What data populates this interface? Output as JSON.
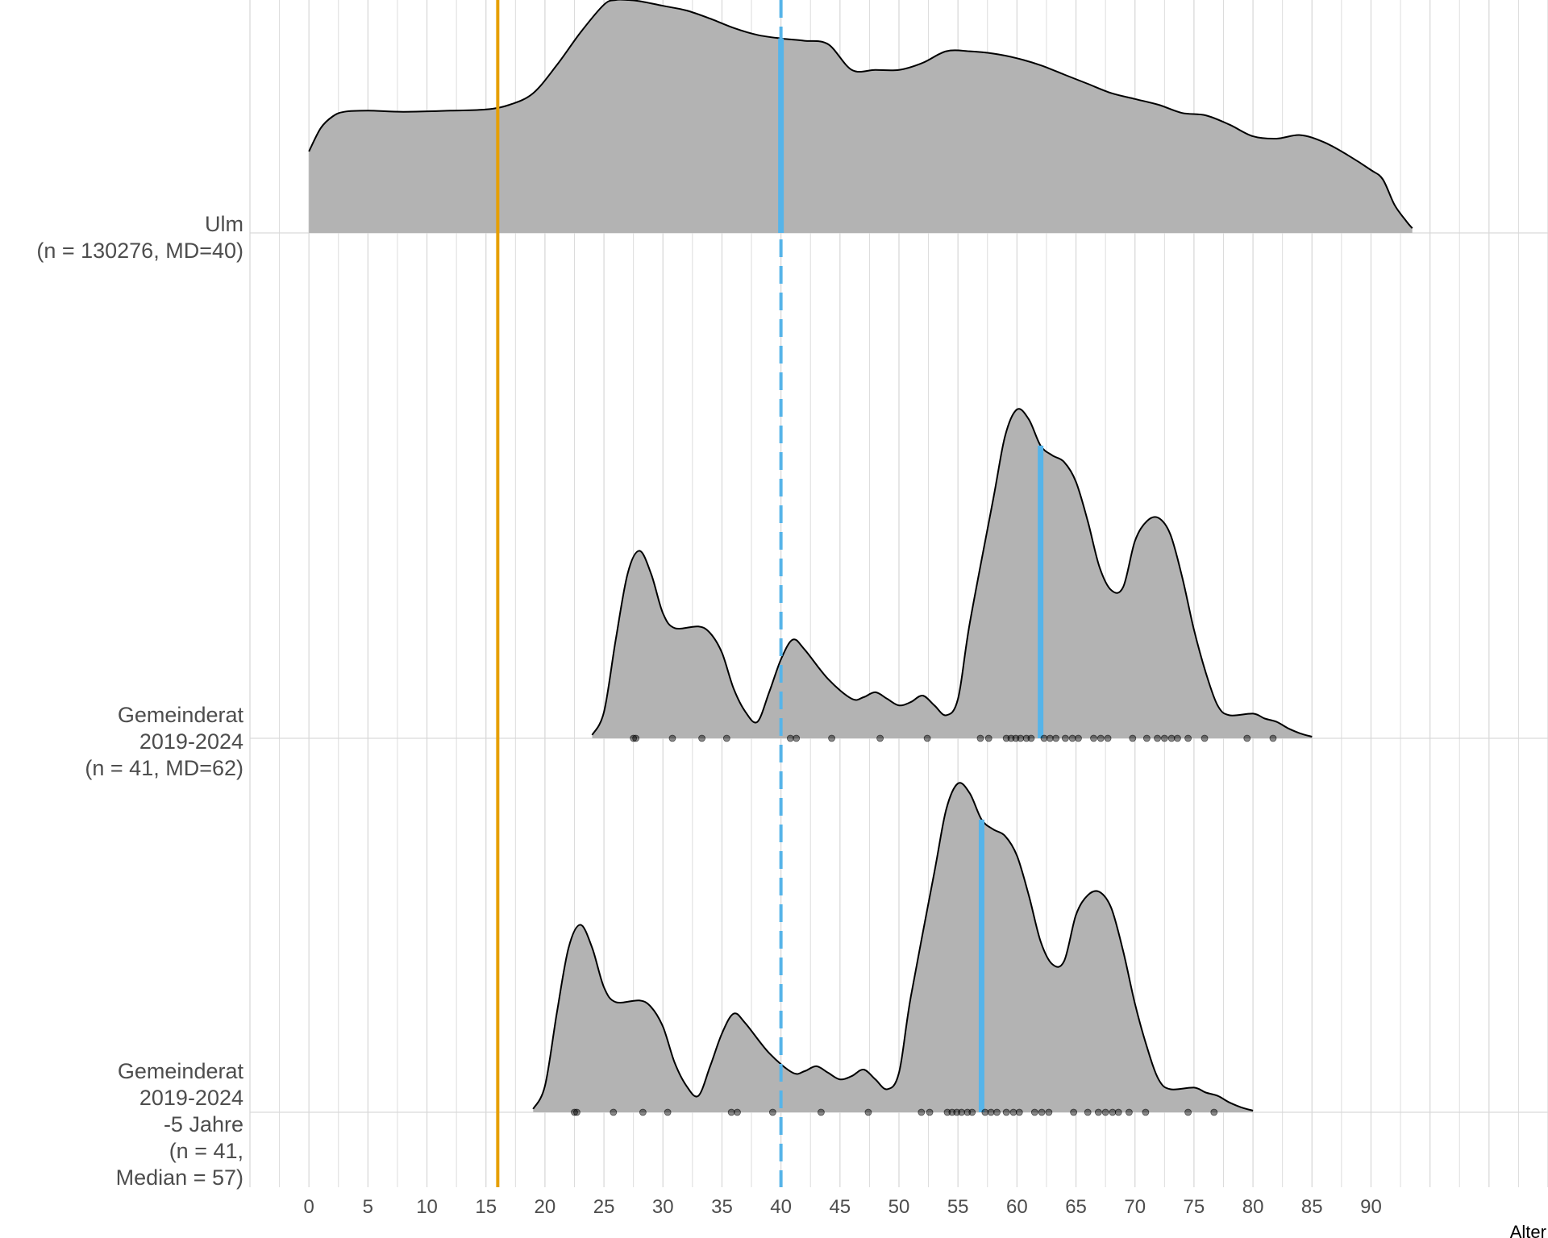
{
  "chart_data": {
    "type": "ridgeline-density",
    "xlabel": "Alter",
    "ylabel": "",
    "title": "",
    "xlim": [
      -5,
      105
    ],
    "x_ticks": [
      0,
      5,
      10,
      15,
      20,
      25,
      30,
      35,
      40,
      45,
      50,
      55,
      60,
      65,
      70,
      75,
      80,
      85,
      90
    ],
    "grid": true,
    "colors": {
      "fill": "#b3b3b3",
      "outline": "#000000",
      "median": "#56b4e9",
      "reference_solid": "#e69f00",
      "reference_dashed": "#56b4e9",
      "grid": "#d9d9d9",
      "points": "#000000"
    },
    "reference_lines": [
      {
        "x": 16,
        "style": "solid",
        "color": "#e69f00"
      },
      {
        "x": 40,
        "style": "dashed",
        "color": "#56b4e9"
      }
    ],
    "series": [
      {
        "label_lines": [
          "Ulm",
          "(n = 130276, MD=40)"
        ],
        "n": 130276,
        "median": 40,
        "rel_height": 1.0,
        "density": [
          [
            0,
            0.35
          ],
          [
            1,
            0.45
          ],
          [
            2,
            0.5
          ],
          [
            3,
            0.52
          ],
          [
            5,
            0.525
          ],
          [
            8,
            0.52
          ],
          [
            12,
            0.525
          ],
          [
            15,
            0.53
          ],
          [
            17,
            0.55
          ],
          [
            19,
            0.6
          ],
          [
            21,
            0.72
          ],
          [
            23,
            0.86
          ],
          [
            25,
            0.98
          ],
          [
            26,
            1.0
          ],
          [
            27,
            1.0
          ],
          [
            28,
            0.995
          ],
          [
            30,
            0.975
          ],
          [
            32,
            0.955
          ],
          [
            34,
            0.92
          ],
          [
            36,
            0.88
          ],
          [
            38,
            0.85
          ],
          [
            40,
            0.835
          ],
          [
            42,
            0.825
          ],
          [
            44,
            0.81
          ],
          [
            46,
            0.7
          ],
          [
            48,
            0.7
          ],
          [
            50,
            0.7
          ],
          [
            52,
            0.73
          ],
          [
            54,
            0.78
          ],
          [
            56,
            0.78
          ],
          [
            58,
            0.77
          ],
          [
            60,
            0.75
          ],
          [
            62,
            0.72
          ],
          [
            64,
            0.68
          ],
          [
            66,
            0.64
          ],
          [
            68,
            0.6
          ],
          [
            70,
            0.575
          ],
          [
            72,
            0.55
          ],
          [
            74,
            0.515
          ],
          [
            76,
            0.505
          ],
          [
            78,
            0.465
          ],
          [
            80,
            0.415
          ],
          [
            82,
            0.405
          ],
          [
            84,
            0.42
          ],
          [
            86,
            0.39
          ],
          [
            88,
            0.335
          ],
          [
            90,
            0.27
          ],
          [
            91,
            0.23
          ],
          [
            92,
            0.12
          ],
          [
            93,
            0.05
          ],
          [
            93.5,
            0.02
          ]
        ],
        "points": []
      },
      {
        "label_lines": [
          "Gemeinderat",
          "2019-2024",
          "(n = 41, MD=62)"
        ],
        "n": 41,
        "median": 62,
        "rel_height": 1.0,
        "density": [
          [
            24,
            0.01
          ],
          [
            25,
            0.08
          ],
          [
            26,
            0.3
          ],
          [
            27,
            0.5
          ],
          [
            28,
            0.57
          ],
          [
            29,
            0.5
          ],
          [
            30,
            0.38
          ],
          [
            31,
            0.335
          ],
          [
            33,
            0.34
          ],
          [
            34,
            0.32
          ],
          [
            35,
            0.26
          ],
          [
            36,
            0.15
          ],
          [
            37,
            0.08
          ],
          [
            38,
            0.05
          ],
          [
            39,
            0.14
          ],
          [
            40,
            0.24
          ],
          [
            41,
            0.3
          ],
          [
            42,
            0.27
          ],
          [
            44,
            0.18
          ],
          [
            46,
            0.12
          ],
          [
            47,
            0.125
          ],
          [
            48,
            0.14
          ],
          [
            49,
            0.12
          ],
          [
            50,
            0.1
          ],
          [
            51,
            0.11
          ],
          [
            52,
            0.13
          ],
          [
            53,
            0.1
          ],
          [
            54,
            0.07
          ],
          [
            55,
            0.12
          ],
          [
            56,
            0.35
          ],
          [
            58,
            0.73
          ],
          [
            59,
            0.92
          ],
          [
            60,
            1.0
          ],
          [
            61,
            0.97
          ],
          [
            62,
            0.89
          ],
          [
            63,
            0.86
          ],
          [
            64,
            0.84
          ],
          [
            65,
            0.78
          ],
          [
            66,
            0.66
          ],
          [
            67,
            0.52
          ],
          [
            68,
            0.45
          ],
          [
            69,
            0.46
          ],
          [
            70,
            0.6
          ],
          [
            71,
            0.66
          ],
          [
            72,
            0.67
          ],
          [
            73,
            0.62
          ],
          [
            74,
            0.49
          ],
          [
            75,
            0.33
          ],
          [
            76,
            0.2
          ],
          [
            77,
            0.1
          ],
          [
            78,
            0.07
          ],
          [
            80,
            0.075
          ],
          [
            81,
            0.06
          ],
          [
            82,
            0.05
          ],
          [
            83,
            0.03
          ],
          [
            84,
            0.015
          ],
          [
            85,
            0.005
          ]
        ],
        "points": [
          27.5,
          27.7,
          30.8,
          33.3,
          35.4,
          40.8,
          41.3,
          44.3,
          48.4,
          52.4,
          56.9,
          57.6,
          59.1,
          59.5,
          59.9,
          60.3,
          60.8,
          61.2,
          62.3,
          62.8,
          63.3,
          64.1,
          64.7,
          65.2,
          66.5,
          67.1,
          67.7,
          69.8,
          71.0,
          71.9,
          72.5,
          73.1,
          73.6,
          74.5,
          75.9,
          79.5,
          81.7
        ]
      },
      {
        "label_lines": [
          "Gemeinderat",
          "2019-2024",
          "-5 Jahre",
          "(n = 41,",
          "Median = 57)"
        ],
        "n": 41,
        "median": 57,
        "rel_height": 1.0,
        "density": [
          [
            19,
            0.01
          ],
          [
            20,
            0.08
          ],
          [
            21,
            0.3
          ],
          [
            22,
            0.5
          ],
          [
            23,
            0.57
          ],
          [
            24,
            0.5
          ],
          [
            25,
            0.38
          ],
          [
            26,
            0.335
          ],
          [
            28,
            0.34
          ],
          [
            29,
            0.32
          ],
          [
            30,
            0.26
          ],
          [
            31,
            0.15
          ],
          [
            32,
            0.08
          ],
          [
            33,
            0.05
          ],
          [
            34,
            0.14
          ],
          [
            35,
            0.24
          ],
          [
            36,
            0.3
          ],
          [
            37,
            0.27
          ],
          [
            39,
            0.18
          ],
          [
            41,
            0.12
          ],
          [
            42,
            0.125
          ],
          [
            43,
            0.14
          ],
          [
            44,
            0.12
          ],
          [
            45,
            0.1
          ],
          [
            46,
            0.11
          ],
          [
            47,
            0.13
          ],
          [
            48,
            0.1
          ],
          [
            49,
            0.07
          ],
          [
            50,
            0.12
          ],
          [
            51,
            0.35
          ],
          [
            53,
            0.73
          ],
          [
            54,
            0.92
          ],
          [
            55,
            1.0
          ],
          [
            56,
            0.97
          ],
          [
            57,
            0.89
          ],
          [
            58,
            0.86
          ],
          [
            59,
            0.84
          ],
          [
            60,
            0.78
          ],
          [
            61,
            0.66
          ],
          [
            62,
            0.52
          ],
          [
            63,
            0.45
          ],
          [
            64,
            0.46
          ],
          [
            65,
            0.6
          ],
          [
            66,
            0.66
          ],
          [
            67,
            0.67
          ],
          [
            68,
            0.62
          ],
          [
            69,
            0.49
          ],
          [
            70,
            0.33
          ],
          [
            71,
            0.2
          ],
          [
            72,
            0.1
          ],
          [
            73,
            0.07
          ],
          [
            75,
            0.075
          ],
          [
            76,
            0.06
          ],
          [
            77,
            0.05
          ],
          [
            78,
            0.03
          ],
          [
            79,
            0.015
          ],
          [
            80,
            0.005
          ]
        ],
        "points": [
          22.5,
          22.7,
          25.8,
          28.3,
          30.4,
          35.8,
          36.3,
          39.3,
          43.4,
          47.4,
          51.9,
          52.6,
          54.1,
          54.5,
          54.9,
          55.3,
          55.8,
          56.2,
          57.3,
          57.8,
          58.3,
          59.1,
          59.7,
          60.2,
          61.5,
          62.1,
          62.7,
          64.8,
          66.0,
          66.9,
          67.5,
          68.1,
          68.6,
          69.5,
          70.9,
          74.5,
          76.7
        ]
      }
    ]
  }
}
